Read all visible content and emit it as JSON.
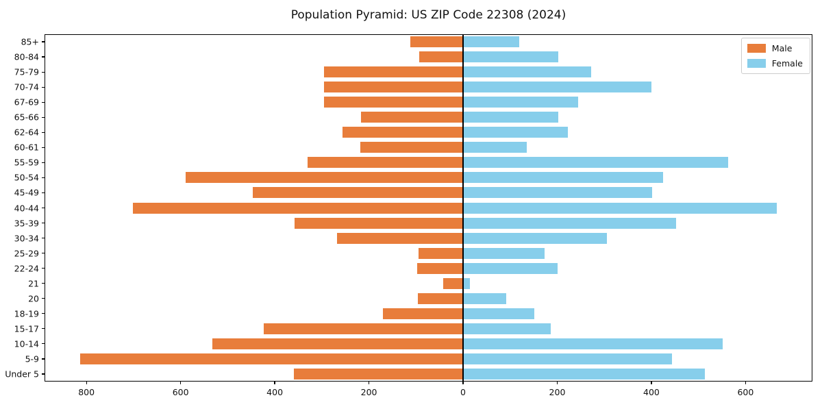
{
  "title": "Population Pyramid: US ZIP Code 22308 (2024)",
  "chart_data": {
    "type": "bar",
    "variant": "population-pyramid",
    "orientation": "horizontal-diverging",
    "title": "Population Pyramid: US ZIP Code 22308 (2024)",
    "categories": [
      "85+",
      "80-84",
      "75-79",
      "70-74",
      "67-69",
      "65-66",
      "62-64",
      "60-61",
      "55-59",
      "50-54",
      "45-49",
      "40-44",
      "35-39",
      "30-34",
      "25-29",
      "22-24",
      "21",
      "20",
      "18-19",
      "15-17",
      "10-14",
      "5-9",
      "Under 5"
    ],
    "series": [
      {
        "name": "Male",
        "side": "left",
        "color": "#e87d3b",
        "values": [
          112,
          93,
          295,
          295,
          295,
          217,
          256,
          218,
          331,
          590,
          446,
          701,
          358,
          268,
          94,
          98,
          42,
          96,
          170,
          423,
          533,
          814,
          360
        ]
      },
      {
        "name": "Female",
        "side": "right",
        "color": "#87ceeb",
        "values": [
          120,
          202,
          272,
          400,
          245,
          202,
          223,
          136,
          563,
          425,
          402,
          666,
          453,
          306,
          173,
          201,
          14,
          91,
          152,
          186,
          551,
          444,
          514
        ]
      }
    ],
    "x_axis": {
      "tick_values": [
        -800,
        -600,
        -400,
        -200,
        0,
        200,
        400,
        600
      ],
      "tick_labels": [
        "800",
        "600",
        "400",
        "200",
        "0",
        "200",
        "400",
        "600"
      ],
      "xlim": [
        -889,
        742
      ]
    },
    "y_axis": {
      "label": ""
    },
    "legend": {
      "position": "upper-right",
      "entries": [
        "Male",
        "Female"
      ]
    },
    "grid": false,
    "center_line_color": "#000000",
    "frame_color": "#000000"
  }
}
